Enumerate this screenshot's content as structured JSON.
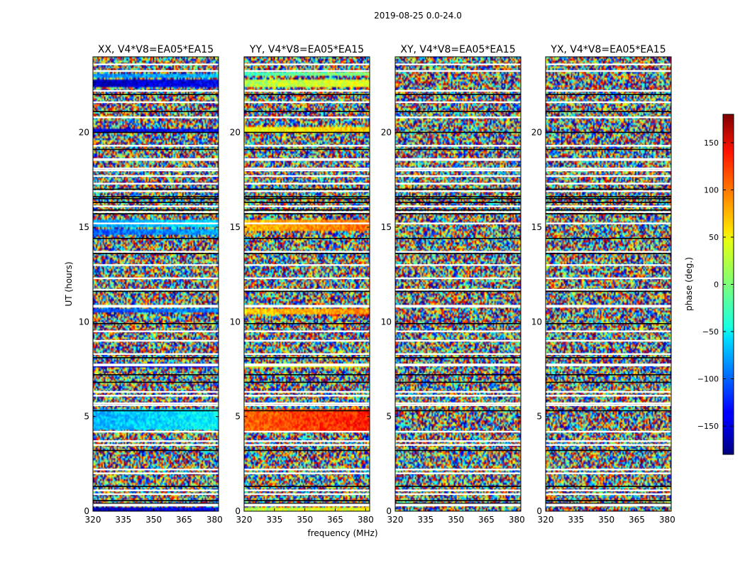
{
  "figure": {
    "title": "2019-08-25 0.0-24.0"
  },
  "chart_data": {
    "type": "heatmap",
    "title": "2019-08-25 0.0-24.0",
    "xlabel": "frequency (MHz)",
    "ylabel": "UT (hours)",
    "xlim": [
      320,
      382
    ],
    "ylim": [
      0,
      24
    ],
    "xticks": [
      320,
      335,
      350,
      365,
      380
    ],
    "yticks": [
      0,
      5,
      10,
      15,
      20
    ],
    "panels": [
      {
        "title": "XX, V4*V8=EA05*EA15",
        "pol": "XX",
        "coherent_bands": [
          {
            "t0": 22.4,
            "t1": 22.8,
            "phase": -160
          },
          {
            "t0": 22.9,
            "t1": 23.1,
            "phase": -90
          },
          {
            "t0": 20.0,
            "t1": 20.2,
            "phase": -150
          },
          {
            "t0": 15.0,
            "t1": 15.4,
            "phase": -80
          },
          {
            "t0": 14.6,
            "t1": 14.9,
            "phase": -100
          },
          {
            "t0": 10.5,
            "t1": 10.7,
            "phase": -110
          },
          {
            "t0": 7.6,
            "t1": 7.8,
            "phase": -150
          },
          {
            "t0": 4.3,
            "t1": 5.4,
            "phase": -70
          },
          {
            "t0": 0.05,
            "t1": 0.15,
            "phase": -160
          }
        ]
      },
      {
        "title": "YY, V4*V8=EA05*EA15",
        "pol": "YY",
        "coherent_bands": [
          {
            "t0": 22.4,
            "t1": 22.8,
            "phase": 15
          },
          {
            "t0": 23.0,
            "t1": 23.2,
            "phase": -20
          },
          {
            "t0": 20.0,
            "t1": 20.3,
            "phase": 40
          },
          {
            "t0": 14.8,
            "t1": 15.4,
            "phase": 70
          },
          {
            "t0": 10.4,
            "t1": 10.7,
            "phase": 60
          },
          {
            "t0": 7.6,
            "t1": 7.8,
            "phase": 30
          },
          {
            "t0": 4.2,
            "t1": 5.4,
            "phase": 100
          },
          {
            "t0": 0.05,
            "t1": 0.2,
            "phase": 20
          }
        ]
      },
      {
        "title": "XY, V4*V8=EA05*EA15",
        "pol": "XY",
        "coherent_bands": []
      },
      {
        "title": "YX, V4*V8=EA05*EA15",
        "pol": "YX",
        "coherent_bands": []
      }
    ],
    "flagged_hours": [
      0.3,
      0.35,
      0.9,
      1.1,
      2.0,
      2.2,
      3.5,
      3.7,
      4.2,
      5.6,
      5.7,
      6.1,
      6.3,
      7.7,
      7.75,
      8.3,
      9.0,
      9.5,
      10.8,
      10.85,
      11.7,
      12.3,
      13.0,
      13.7,
      15.2,
      15.8,
      16.1,
      16.9,
      17.3,
      17.7,
      18.0,
      18.1,
      18.55,
      18.6,
      19.3,
      20.8,
      21.6,
      22.2,
      23.25,
      23.6
    ],
    "dark_hours": [
      0.4,
      0.55,
      1.3,
      3.2,
      5.3,
      6.8,
      7.2,
      8.1,
      9.9,
      11.6,
      13.6,
      14.4,
      15.7,
      15.9,
      16.3,
      16.5,
      16.6,
      17.0,
      19.1,
      20.0,
      21.1,
      22.0
    ],
    "colorbar": {
      "label": "phase (deg.)",
      "min": -180,
      "max": 180,
      "ticks": [
        -150,
        -100,
        -50,
        0,
        50,
        100,
        150
      ],
      "tick_labels": [
        "−150",
        "−100",
        "−50",
        "0",
        "50",
        "100",
        "150"
      ],
      "footnote": "· · · · ·"
    }
  }
}
